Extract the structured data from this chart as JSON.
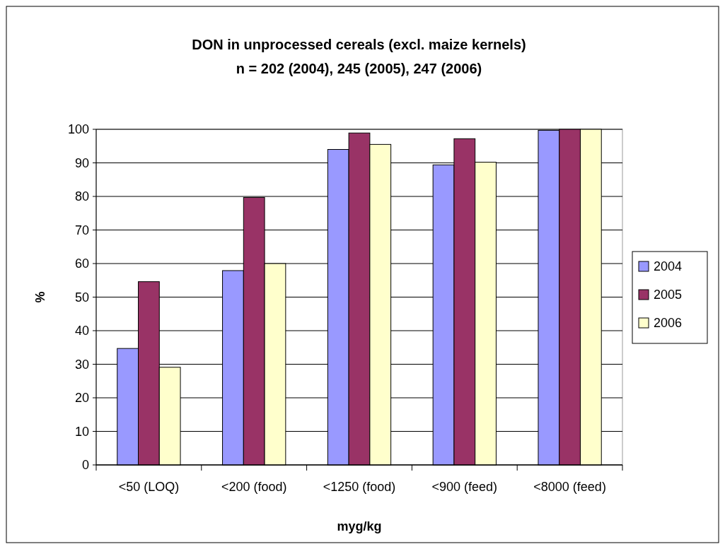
{
  "chart_data": {
    "type": "bar",
    "title": "DON in unprocessed cereals (excl. maize kernels)",
    "subtitle": "n = 202 (2004), 245 (2005), 247 (2006)",
    "xlabel": "myg/kg",
    "ylabel": "%",
    "categories": [
      "<50 (LOQ)",
      "<200 (food)",
      "<1250 (food)",
      "<900 (feed)",
      "<8000 (feed)"
    ],
    "series": [
      {
        "name": "2004",
        "color": "#9999ff",
        "values": [
          34.7,
          57.9,
          94.0,
          89.4,
          99.7
        ]
      },
      {
        "name": "2005",
        "color": "#993366",
        "values": [
          54.6,
          79.7,
          98.9,
          97.2,
          100
        ]
      },
      {
        "name": "2006",
        "color": "#ffffcc",
        "values": [
          29.1,
          60.0,
          95.5,
          90.2,
          100
        ]
      }
    ],
    "ylim": [
      0,
      100
    ],
    "yticks": [
      0,
      10,
      20,
      30,
      40,
      50,
      60,
      70,
      80,
      90,
      100
    ],
    "grid": "y",
    "legend": "right"
  }
}
